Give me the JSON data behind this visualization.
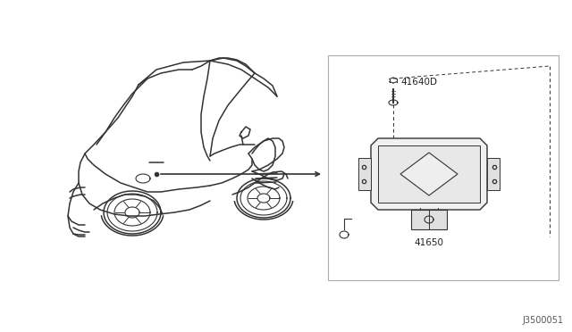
{
  "background_color": "#ffffff",
  "line_color": "#333333",
  "box_border_color": "#999999",
  "label_41640D": "41640D",
  "label_41650": "41650",
  "diagram_label": "J3500051",
  "lw": 1.0,
  "car_lw": 1.1
}
